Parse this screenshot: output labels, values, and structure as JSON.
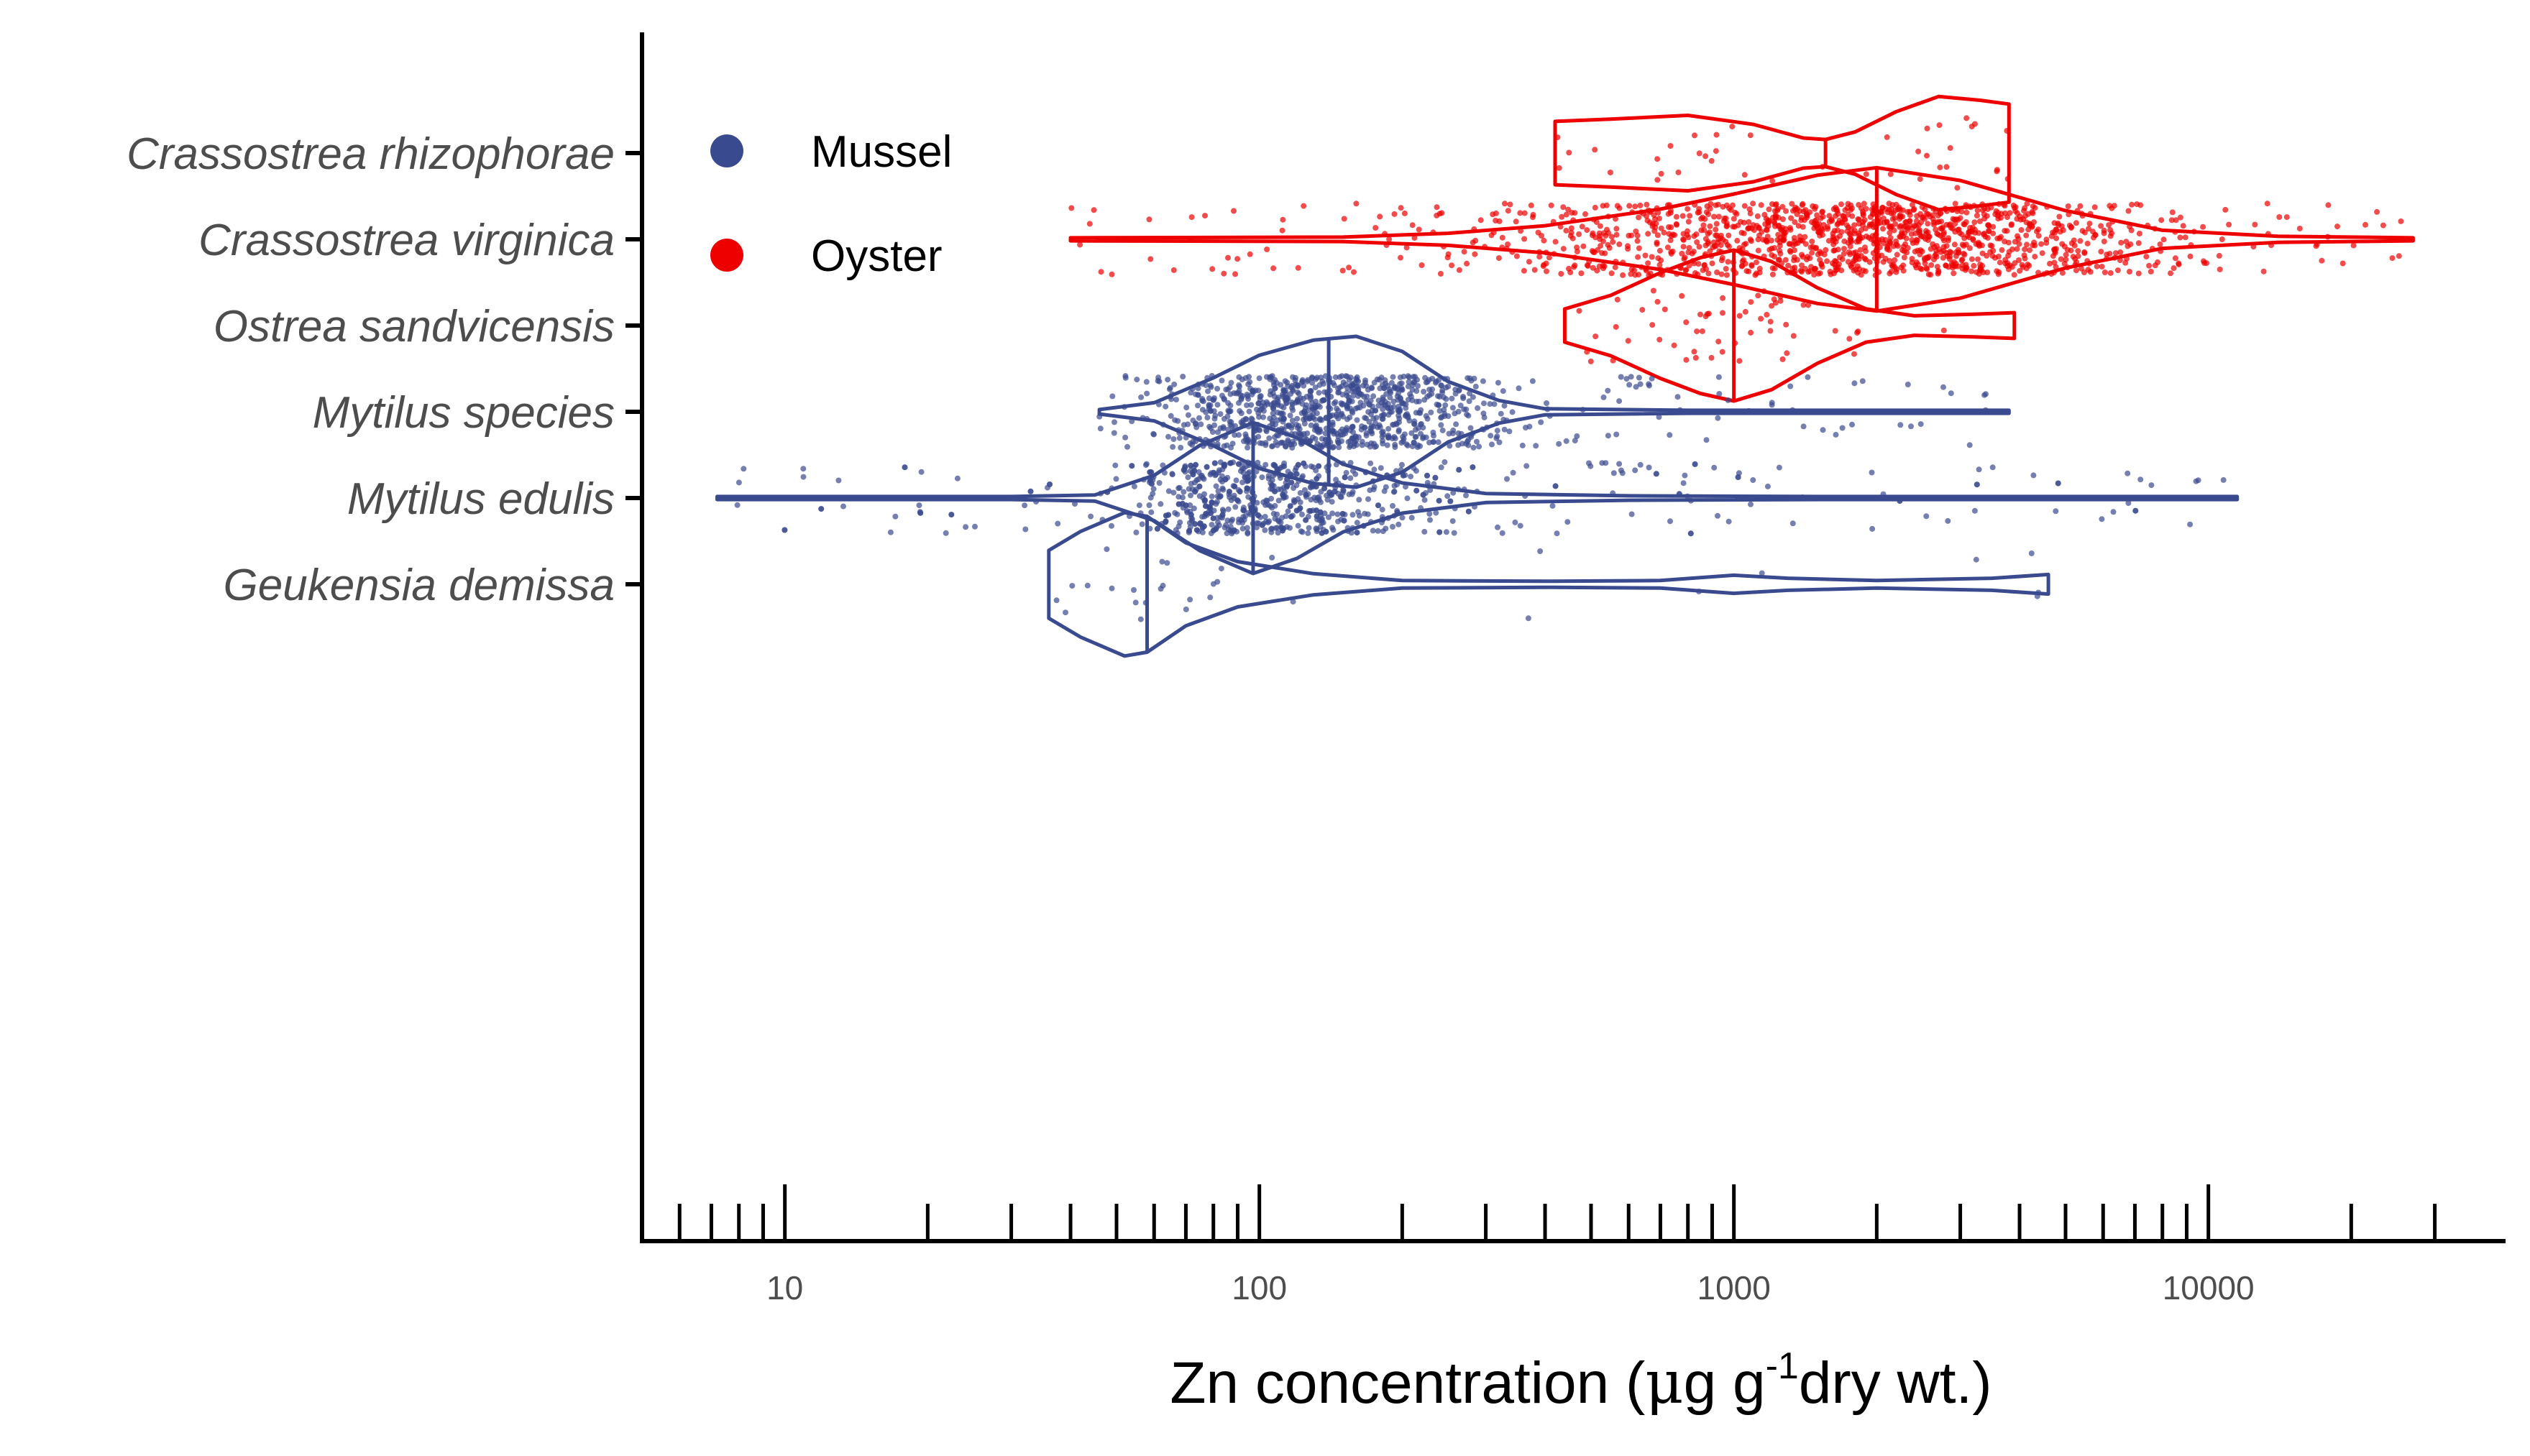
{
  "chart_data": {
    "type": "violin",
    "xlabel_parts": {
      "pre": "Zn concentration (",
      "mu": "μ",
      "post_mu": "g g",
      "sup": "-1",
      "post": "dry wt.)"
    },
    "x_scale": "log10",
    "xlim": [
      5,
      35000
    ],
    "x_ticks": [
      10,
      100,
      1000,
      10000
    ],
    "x_tick_labels": [
      "10",
      "100",
      "1000",
      "10000"
    ],
    "legend": {
      "placement": "top-left",
      "items": [
        {
          "label": "Mussel",
          "color": "#3A4A8F"
        },
        {
          "label": "Oyster",
          "color": "#EE0000"
        }
      ]
    },
    "categories": [
      "Crassostrea rhizophorae",
      "Crassostrea virginica",
      "Ostrea sandvicensis",
      "Mytilus species",
      "Mytilus edulis",
      "Geukensia demissa"
    ],
    "series": [
      {
        "category": "Crassostrea rhizophorae",
        "group": "Oyster",
        "min": 420,
        "max": 3800,
        "median": 1560,
        "density": [
          [
            420,
            0.42
          ],
          [
            550,
            0.45
          ],
          [
            800,
            0.5
          ],
          [
            1100,
            0.38
          ],
          [
            1400,
            0.2
          ],
          [
            1560,
            0.18
          ],
          [
            1800,
            0.28
          ],
          [
            2200,
            0.55
          ],
          [
            2700,
            0.75
          ],
          [
            3300,
            0.7
          ],
          [
            3800,
            0.65
          ]
        ],
        "n_points": 40
      },
      {
        "category": "Crassostrea virginica",
        "group": "Oyster",
        "min": 40,
        "max": 27000,
        "median": 2000,
        "density": [
          [
            40,
            0.02
          ],
          [
            150,
            0.03
          ],
          [
            250,
            0.08
          ],
          [
            400,
            0.18
          ],
          [
            700,
            0.4
          ],
          [
            1000,
            0.6
          ],
          [
            1500,
            0.85
          ],
          [
            2000,
            0.95
          ],
          [
            3000,
            0.78
          ],
          [
            5000,
            0.38
          ],
          [
            8000,
            0.12
          ],
          [
            14000,
            0.04
          ],
          [
            27000,
            0.02
          ]
        ],
        "n_points": 1400
      },
      {
        "category": "Ostrea sandvicensis",
        "group": "Oyster",
        "min": 440,
        "max": 3900,
        "median": 1000,
        "density": [
          [
            440,
            0.22
          ],
          [
            550,
            0.4
          ],
          [
            700,
            0.7
          ],
          [
            850,
            0.9
          ],
          [
            1000,
            1.0
          ],
          [
            1200,
            0.85
          ],
          [
            1500,
            0.5
          ],
          [
            1900,
            0.22
          ],
          [
            2400,
            0.13
          ],
          [
            3200,
            0.15
          ],
          [
            3900,
            0.17
          ]
        ],
        "n_points": 60
      },
      {
        "category": "Mytilus species",
        "group": "Mussel",
        "min": 46,
        "max": 3800,
        "median": 140,
        "density": [
          [
            46,
            0.03
          ],
          [
            60,
            0.12
          ],
          [
            80,
            0.45
          ],
          [
            100,
            0.75
          ],
          [
            130,
            0.95
          ],
          [
            160,
            1.0
          ],
          [
            200,
            0.8
          ],
          [
            250,
            0.4
          ],
          [
            320,
            0.15
          ],
          [
            400,
            0.04
          ],
          [
            800,
            0.02
          ],
          [
            3800,
            0.02
          ]
        ],
        "n_points": 1000
      },
      {
        "category": "Mytilus edulis",
        "group": "Mussel",
        "min": 7.2,
        "max": 11500,
        "median": 97,
        "density": [
          [
            7.2,
            0.02
          ],
          [
            30,
            0.02
          ],
          [
            45,
            0.04
          ],
          [
            60,
            0.3
          ],
          [
            75,
            0.7
          ],
          [
            97,
            1.0
          ],
          [
            120,
            0.8
          ],
          [
            150,
            0.45
          ],
          [
            200,
            0.2
          ],
          [
            300,
            0.06
          ],
          [
            600,
            0.03
          ],
          [
            1500,
            0.02
          ],
          [
            11500,
            0.02
          ]
        ],
        "n_points": 800
      },
      {
        "category": "Geukensia demissa",
        "group": "Mussel",
        "min": 36,
        "max": 4600,
        "median": 58,
        "density": [
          [
            36,
            0.45
          ],
          [
            42,
            0.7
          ],
          [
            52,
            0.95
          ],
          [
            58,
            0.9
          ],
          [
            70,
            0.55
          ],
          [
            90,
            0.3
          ],
          [
            130,
            0.14
          ],
          [
            200,
            0.05
          ],
          [
            400,
            0.04
          ],
          [
            700,
            0.05
          ],
          [
            1000,
            0.12
          ],
          [
            1300,
            0.08
          ],
          [
            2000,
            0.05
          ],
          [
            3500,
            0.08
          ],
          [
            4600,
            0.13
          ]
        ],
        "n_points": 30
      }
    ]
  }
}
